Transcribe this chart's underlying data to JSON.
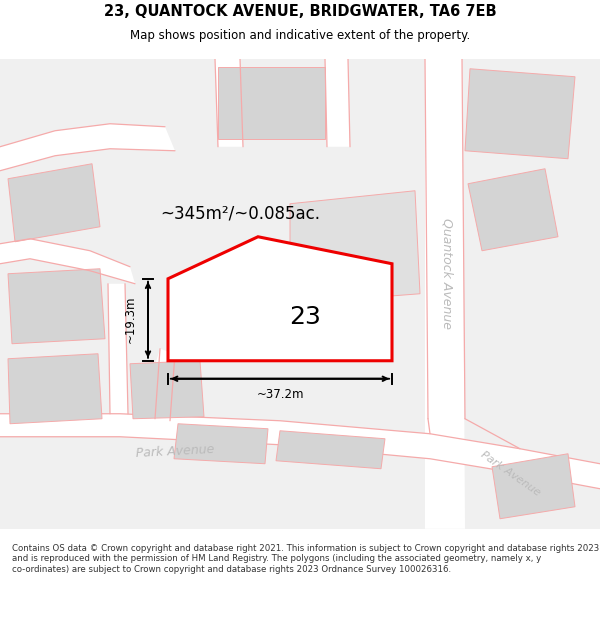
{
  "title": "23, QUANTOCK AVENUE, BRIDGWATER, TA6 7EB",
  "subtitle": "Map shows position and indicative extent of the property.",
  "area_text": "~345m²/~0.085ac.",
  "number_label": "23",
  "dim_width": "~37.2m",
  "dim_height": "~19.3m",
  "road_label_park1": "Park Avenue",
  "road_label_park2": "Park Avenue",
  "road_label_quantock": "Quantock Avenue",
  "footer_text": "Contains OS data © Crown copyright and database right 2021. This information is subject to Crown copyright and database rights 2023 and is reproduced with the permission of HM Land Registry. The polygons (including the associated geometry, namely x, y co-ordinates) are subject to Crown copyright and database rights 2023 Ordnance Survey 100026316.",
  "bg_color": "#ffffff",
  "map_bg": "#f0f0f0",
  "road_fill": "#ffffff",
  "road_stroke": "#f5aaaa",
  "plot_fill": "#ffffff",
  "plot_stroke": "#ee0000",
  "block_fill": "#d4d4d4",
  "block_stroke": "#f5aaaa",
  "title_color": "#000000",
  "dim_color": "#000000",
  "area_color": "#000000",
  "number_color": "#000000",
  "road_label_color": "#bbbbbb",
  "footer_color": "#333333",
  "title_fontsize": 10.5,
  "subtitle_fontsize": 8.5,
  "area_fontsize": 12,
  "number_fontsize": 18,
  "dim_fontsize": 8.5,
  "road_fontsize": 9,
  "footer_fontsize": 6.2,
  "figsize": [
    6.0,
    6.25
  ],
  "dpi": 100
}
